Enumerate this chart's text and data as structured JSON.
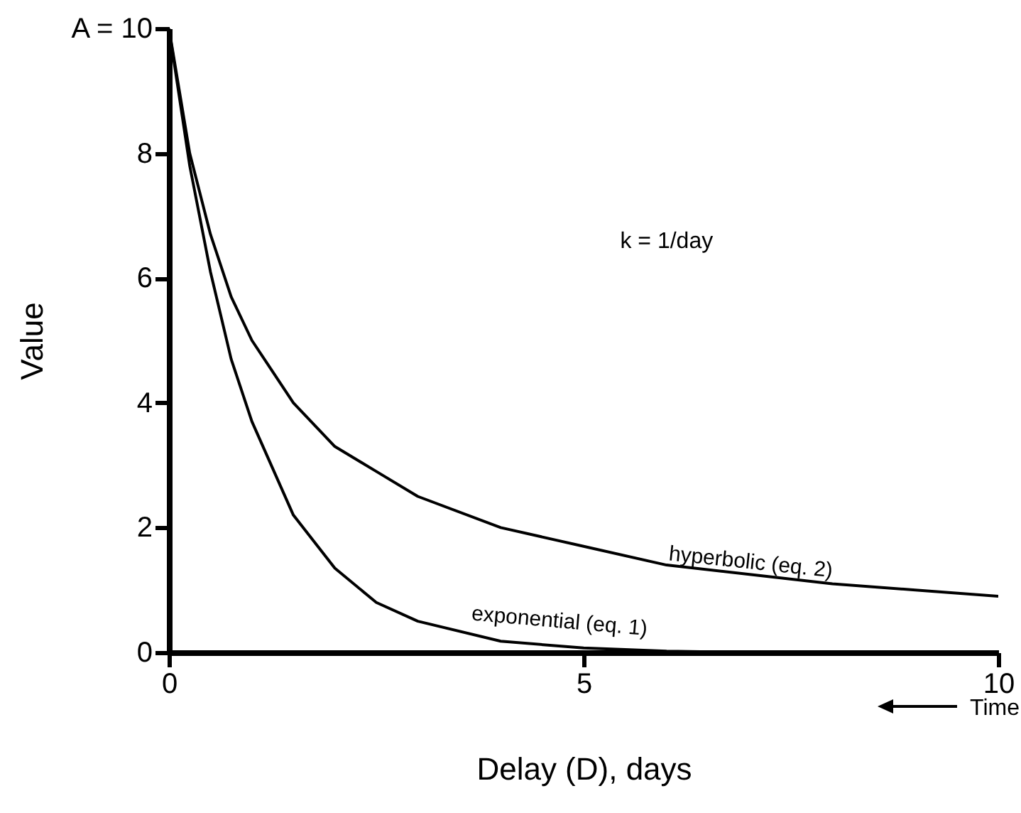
{
  "chart_data": {
    "type": "line",
    "xlabel": "Delay (D), days",
    "ylabel": "Value",
    "annotations": [
      "k = 1/day",
      {
        "text": "Time",
        "x": 10,
        "y": 0
      }
    ],
    "xlim": [
      0,
      10
    ],
    "ylim": [
      0,
      10
    ],
    "xticks": [
      0,
      5,
      10
    ],
    "yticks": [
      0,
      2,
      4,
      6,
      8,
      {
        "value": 10,
        "label": "A = 10"
      }
    ],
    "grid": false,
    "legend": false,
    "marker": "none",
    "line_style": "solid",
    "series": [
      {
        "name": "hyperbolic (eq. 2)",
        "color": "#000000",
        "x": [
          0,
          0.25,
          0.5,
          0.75,
          1,
          1.5,
          2,
          2.5,
          3,
          4,
          5,
          6,
          7,
          8,
          9,
          10
        ],
        "values": [
          10,
          8,
          6.7,
          5.7,
          5,
          4,
          3.3,
          2.9,
          2.5,
          2,
          1.7,
          1.4,
          1.25,
          1.1,
          1,
          0.9
        ]
      },
      {
        "name": "exponential (eq. 1)",
        "color": "#000000",
        "x": [
          0,
          0.25,
          0.5,
          0.75,
          1,
          1.5,
          2,
          2.5,
          3,
          4,
          5,
          6,
          7,
          8,
          9,
          10
        ],
        "values": [
          10,
          7.8,
          6.1,
          4.7,
          3.7,
          2.2,
          1.35,
          0.8,
          0.5,
          0.18,
          0.07,
          0.02,
          0,
          0,
          0,
          0
        ]
      }
    ]
  }
}
